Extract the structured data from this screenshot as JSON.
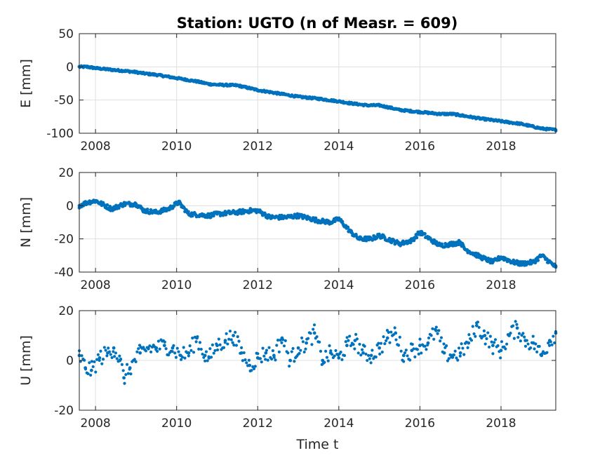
{
  "title": "Station: UGTO (n of Measr. = 609)",
  "colors": {
    "marker": "#0072BD",
    "axis": "#262626",
    "grid": "#dfdfdf"
  },
  "chart_data": [
    {
      "type": "scatter",
      "panel": "E",
      "ylabel": "E [mm]",
      "xlabel": "",
      "xlim": [
        2007.6,
        2019.35
      ],
      "ylim": [
        -100,
        50
      ],
      "xticks": [
        2008,
        2010,
        2012,
        2014,
        2016,
        2018
      ],
      "yticks": [
        50,
        0,
        -50,
        -100
      ],
      "grid": true,
      "series": [
        {
          "x": [
            2007.6,
            2007.8,
            2008.0,
            2008.5,
            2008.7,
            2009.0,
            2009.2,
            2009.5,
            2010.0,
            2010.5,
            2010.8,
            2011.0,
            2011.5,
            2012.0,
            2012.5,
            2013.0,
            2013.5,
            2014.0,
            2014.3,
            2014.7,
            2015.0,
            2015.3,
            2015.5,
            2016.0,
            2016.5,
            2016.8,
            2017.0,
            2017.5,
            2018.0,
            2018.5,
            2019.0,
            2019.35
          ],
          "y": [
            0,
            0,
            -2,
            -5,
            -6,
            -8,
            -10,
            -12,
            -17,
            -22,
            -26,
            -27,
            -28,
            -35,
            -40,
            -45,
            -48,
            -52,
            -55,
            -58,
            -58,
            -62,
            -65,
            -68,
            -71,
            -71,
            -73,
            -78,
            -82,
            -86,
            -93,
            -95
          ]
        }
      ]
    },
    {
      "type": "scatter",
      "panel": "N",
      "ylabel": "N [mm]",
      "xlabel": "",
      "xlim": [
        2007.6,
        2019.35
      ],
      "ylim": [
        -40,
        20
      ],
      "xticks": [
        2008,
        2010,
        2012,
        2014,
        2016,
        2018
      ],
      "yticks": [
        20,
        0,
        -20,
        -40
      ],
      "grid": true,
      "series": [
        {
          "x": [
            2007.6,
            2007.8,
            2008.0,
            2008.4,
            2008.7,
            2009.0,
            2009.2,
            2009.5,
            2009.8,
            2010.05,
            2010.3,
            2010.8,
            2011.0,
            2011.5,
            2011.8,
            2012.0,
            2012.3,
            2012.7,
            2013.0,
            2013.5,
            2013.8,
            2014.0,
            2014.3,
            2014.5,
            2014.8,
            2015.0,
            2015.3,
            2015.5,
            2015.8,
            2016.0,
            2016.3,
            2016.5,
            2016.8,
            2017.0,
            2017.1,
            2017.5,
            2017.8,
            2018.0,
            2018.3,
            2018.5,
            2018.8,
            2019.0,
            2019.35
          ],
          "y": [
            0,
            2,
            3,
            -2,
            1,
            1,
            -3,
            -4,
            -2,
            2,
            -5,
            -6,
            -5,
            -4,
            -3,
            -3,
            -7,
            -7,
            -6,
            -9,
            -10,
            -8,
            -16,
            -20,
            -20,
            -18,
            -21,
            -23,
            -21,
            -16,
            -21,
            -24,
            -23,
            -22,
            -26,
            -31,
            -34,
            -31,
            -34,
            -35,
            -34,
            -30,
            -37
          ]
        }
      ]
    },
    {
      "type": "scatter",
      "panel": "U",
      "ylabel": "U [mm]",
      "xlabel": "Time t",
      "xlim": [
        2007.6,
        2019.35
      ],
      "ylim": [
        -20,
        20
      ],
      "xticks": [
        2008,
        2010,
        2012,
        2014,
        2016,
        2018
      ],
      "yticks": [
        20,
        0,
        -20
      ],
      "grid": true,
      "series": [
        {
          "x": [
            2007.6,
            2007.75,
            2007.9,
            2008.1,
            2008.3,
            2008.45,
            2008.6,
            2008.7,
            2008.85,
            2009.1,
            2009.3,
            2009.5,
            2009.7,
            2009.9,
            2010.1,
            2010.3,
            2010.5,
            2010.7,
            2010.8,
            2011.0,
            2011.2,
            2011.4,
            2011.6,
            2011.8,
            2012.0,
            2012.2,
            2012.4,
            2012.6,
            2012.8,
            2013.0,
            2013.2,
            2013.4,
            2013.6,
            2013.8,
            2014.0,
            2014.2,
            2014.4,
            2014.6,
            2014.8,
            2015.0,
            2015.2,
            2015.4,
            2015.6,
            2015.8,
            2016.0,
            2016.2,
            2016.4,
            2016.6,
            2016.8,
            2017.0,
            2017.2,
            2017.4,
            2017.6,
            2017.8,
            2018.0,
            2018.2,
            2018.4,
            2018.6,
            2018.8,
            2019.0,
            2019.2,
            2019.35
          ],
          "y": [
            2,
            -3,
            -4,
            1,
            3,
            5,
            0,
            -7,
            -3,
            3,
            5,
            5,
            6,
            5,
            2,
            3,
            9,
            2,
            1,
            6,
            8,
            10,
            3,
            -2,
            1,
            3,
            2,
            9,
            0,
            5,
            7,
            11,
            0,
            3,
            1,
            6,
            8,
            3,
            2,
            5,
            9,
            11,
            2,
            4,
            6,
            7,
            12,
            3,
            2,
            3,
            7,
            14,
            10,
            6,
            4,
            10,
            13,
            8,
            7,
            2,
            8,
            11
          ]
        }
      ]
    }
  ]
}
